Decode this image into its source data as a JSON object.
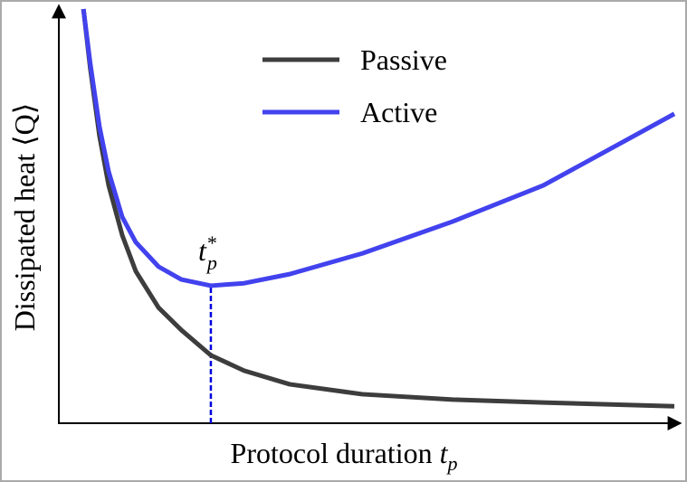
{
  "chart_data": {
    "type": "line",
    "x_label": {
      "text": "Protocol duration",
      "var": "t",
      "sub": "p"
    },
    "y_label": "Dissipated heat ⟨Q⟩",
    "x": [
      0.04,
      0.051,
      0.066,
      0.081,
      0.103,
      0.125,
      0.162,
      0.199,
      0.247,
      0.301,
      0.375,
      0.493,
      0.64,
      0.787,
      1.0
    ],
    "series": [
      {
        "name": "Passive",
        "color": "#3d3d3d",
        "values": [
          1.0,
          0.858,
          0.694,
          0.574,
          0.454,
          0.367,
          0.279,
          0.225,
          0.164,
          0.127,
          0.094,
          0.07,
          0.057,
          0.05,
          0.041
        ]
      },
      {
        "name": "Active",
        "color": "#4242ee",
        "values": [
          1.0,
          0.869,
          0.716,
          0.607,
          0.498,
          0.437,
          0.378,
          0.347,
          0.332,
          0.338,
          0.36,
          0.41,
          0.487,
          0.574,
          0.747
        ]
      }
    ],
    "annotation": {
      "var": "t",
      "sub": "p",
      "sup": "*",
      "x": 0.247,
      "y": 0.332,
      "color": "#0000dd"
    },
    "xlim": [
      0,
      1
    ],
    "ylim": [
      0,
      1
    ],
    "legend": "upper center"
  }
}
